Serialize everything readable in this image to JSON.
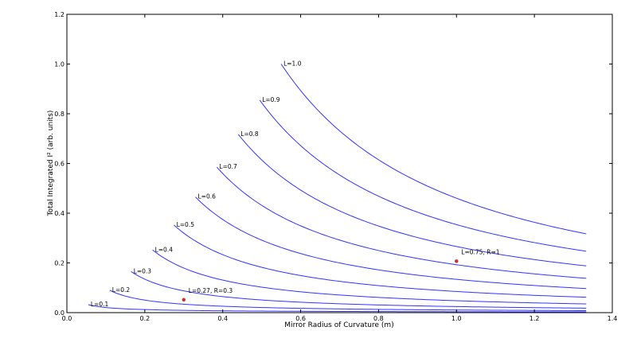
{
  "chart_data": {
    "type": "line",
    "title": "",
    "xlabel": "Mirror Radius of Curvature (m)",
    "ylabel": "Total Integrated I² (arb. units)",
    "xlim": [
      0.0,
      1.4
    ],
    "ylim": [
      0.0,
      1.2
    ],
    "xticks": [
      "0.0",
      "0.2",
      "0.4",
      "0.6",
      "0.8",
      "1.0",
      "1.2",
      "1.4"
    ],
    "yticks": [
      "0.0",
      "0.2",
      "0.4",
      "0.6",
      "0.8",
      "1.0",
      "1.2"
    ],
    "grid": false,
    "line_color": "#3333ff",
    "marker_color": "#d62728",
    "series": [
      {
        "name": "L=0.1",
        "L": 0.1,
        "x_start": 0.055,
        "x_end": 1.333,
        "y_start": 0.032,
        "y_end": 0.003
      },
      {
        "name": "L=0.2",
        "L": 0.2,
        "x_start": 0.11,
        "x_end": 1.333,
        "y_start": 0.09,
        "y_end": 0.008
      },
      {
        "name": "L=0.3",
        "L": 0.3,
        "x_start": 0.165,
        "x_end": 1.333,
        "y_start": 0.165,
        "y_end": 0.018
      },
      {
        "name": "L=0.4",
        "L": 0.4,
        "x_start": 0.22,
        "x_end": 1.333,
        "y_start": 0.252,
        "y_end": 0.035
      },
      {
        "name": "L=0.5",
        "L": 0.5,
        "x_start": 0.275,
        "x_end": 1.333,
        "y_start": 0.352,
        "y_end": 0.062
      },
      {
        "name": "L=0.6",
        "L": 0.6,
        "x_start": 0.33,
        "x_end": 1.333,
        "y_start": 0.465,
        "y_end": 0.097
      },
      {
        "name": "L=0.7",
        "L": 0.7,
        "x_start": 0.385,
        "x_end": 1.333,
        "y_start": 0.585,
        "y_end": 0.138
      },
      {
        "name": "L=0.8",
        "L": 0.8,
        "x_start": 0.44,
        "x_end": 1.333,
        "y_start": 0.717,
        "y_end": 0.188
      },
      {
        "name": "L=0.9",
        "L": 0.9,
        "x_start": 0.495,
        "x_end": 1.333,
        "y_start": 0.855,
        "y_end": 0.247
      },
      {
        "name": "L=1.0",
        "L": 1.0,
        "x_start": 0.55,
        "x_end": 1.333,
        "y_start": 1.0,
        "y_end": 0.317
      }
    ],
    "points": [
      {
        "label": "L=0.27, R=0.3",
        "x": 0.3,
        "y": 0.052
      },
      {
        "label": "L=0.75, R=1",
        "x": 1.0,
        "y": 0.207
      }
    ]
  }
}
